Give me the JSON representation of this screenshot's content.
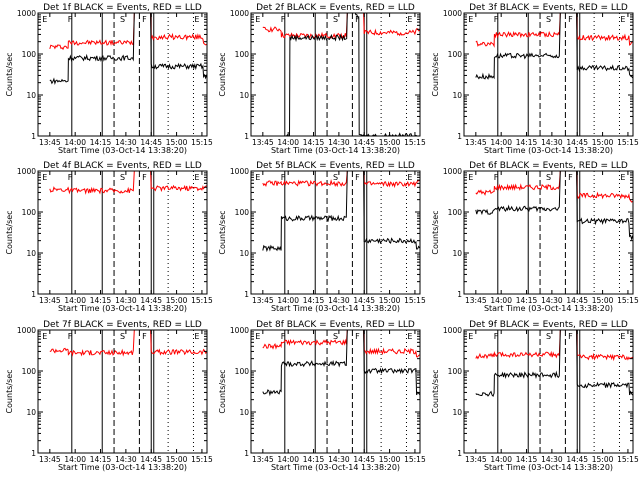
{
  "chart_data": [
    {
      "type": "line",
      "title": "Det 1f BLACK = Events, RED = LLD",
      "xlabel": "Start Time (03-Oct-14 13:38:20)",
      "ylabel": "Counts/sec",
      "x_ticks": [
        "13:45",
        "14:00",
        "14:15",
        "14:30",
        "14:45",
        "15:00",
        "15:15"
      ],
      "y_ticks": [
        "1",
        "10",
        "100",
        "1000"
      ],
      "ylim": [
        1,
        1000
      ],
      "yscale": "log",
      "markers": [
        "E",
        "F",
        "S",
        "F",
        "E"
      ],
      "series": [
        {
          "color": "#ff0000",
          "x_min": [
            7,
            18,
            57,
            67,
            98
          ],
          "values": [
            150,
            190,
            1000,
            260,
            180
          ]
        },
        {
          "color": "#000000",
          "x_min": [
            7,
            18,
            57,
            67,
            98
          ],
          "values": [
            22,
            80,
            1000,
            50,
            28
          ]
        }
      ]
    },
    {
      "type": "line",
      "title": "Det 2f BLACK = Events, RED = LLD",
      "xlabel": "Start Time (03-Oct-14 13:38:20)",
      "ylabel": "Counts/sec",
      "x_ticks": [
        "13:45",
        "14:00",
        "14:15",
        "14:30",
        "14:45",
        "15:00",
        "15:15"
      ],
      "y_ticks": [
        "1",
        "10",
        "100",
        "1000"
      ],
      "ylim": [
        1,
        1000
      ],
      "yscale": "log",
      "markers": [
        "E",
        "F",
        "S",
        "F",
        "E"
      ],
      "series": [
        {
          "color": "#ff0000",
          "x_min": [
            7,
            18,
            57,
            67,
            98
          ],
          "values": [
            400,
            280,
            1000,
            330,
            380
          ]
        },
        {
          "color": "#000000",
          "x_min": [
            21,
            23,
            57,
            62,
            64
          ],
          "values": [
            1,
            250,
            1000,
            800,
            1
          ]
        }
      ]
    },
    {
      "type": "line",
      "title": "Det 3f BLACK = Events, RED = LLD",
      "xlabel": "Start Time (03-Oct-14 13:38:20)",
      "ylabel": "Counts/sec",
      "x_ticks": [
        "13:45",
        "14:00",
        "14:15",
        "14:30",
        "14:45",
        "15:00",
        "15:15"
      ],
      "y_ticks": [
        "1",
        "10",
        "100",
        "1000"
      ],
      "ylim": [
        1,
        1000
      ],
      "yscale": "log",
      "markers": [
        "E",
        "F",
        "S",
        "F",
        "E"
      ],
      "series": [
        {
          "color": "#ff0000",
          "x_min": [
            7,
            18,
            57,
            67,
            98
          ],
          "values": [
            180,
            300,
            1000,
            250,
            190
          ]
        },
        {
          "color": "#000000",
          "x_min": [
            7,
            18,
            57,
            67,
            98
          ],
          "values": [
            28,
            90,
            1000,
            45,
            28
          ]
        }
      ]
    },
    {
      "type": "line",
      "title": "Det 4f BLACK = Events, RED = LLD",
      "xlabel": "Start Time (03-Oct-14 13:38:20)",
      "ylabel": "Counts/sec",
      "x_ticks": [
        "13:45",
        "14:00",
        "14:15",
        "14:30",
        "14:45",
        "15:00",
        "15:15"
      ],
      "y_ticks": [
        "1",
        "10",
        "100",
        "1000"
      ],
      "ylim": [
        1,
        1000
      ],
      "yscale": "log",
      "markers": [
        "E",
        "F",
        "S",
        "F",
        "E"
      ],
      "series": [
        {
          "color": "#ff0000",
          "x_min": [
            7,
            18,
            57,
            67,
            98
          ],
          "values": [
            350,
            330,
            1000,
            380,
            400
          ]
        }
      ]
    },
    {
      "type": "line",
      "title": "Det 5f BLACK = Events, RED = LLD",
      "xlabel": "Start Time (03-Oct-14 13:38:20)",
      "ylabel": "Counts/sec",
      "x_ticks": [
        "13:45",
        "14:00",
        "14:15",
        "14:30",
        "14:45",
        "15:00",
        "15:15"
      ],
      "y_ticks": [
        "1",
        "10",
        "100",
        "1000"
      ],
      "ylim": [
        1,
        1000
      ],
      "yscale": "log",
      "markers": [
        "E",
        "F",
        "S",
        "F",
        "E"
      ],
      "series": [
        {
          "color": "#ff0000",
          "x_min": [
            7,
            18,
            57,
            67,
            98
          ],
          "values": [
            500,
            500,
            1000,
            480,
            520
          ]
        },
        {
          "color": "#000000",
          "x_min": [
            7,
            18,
            57,
            67,
            98
          ],
          "values": [
            13,
            70,
            1000,
            20,
            13
          ]
        }
      ]
    },
    {
      "type": "line",
      "title": "Det 6f BLACK = Events, RED = LLD",
      "xlabel": "Start Time (03-Oct-14 13:38:20)",
      "ylabel": "Counts/sec",
      "x_ticks": [
        "13:45",
        "14:00",
        "14:15",
        "14:30",
        "14:45",
        "15:00",
        "15:15"
      ],
      "y_ticks": [
        "1",
        "10",
        "100",
        "1000"
      ],
      "ylim": [
        1,
        1000
      ],
      "yscale": "log",
      "markers": [
        "E",
        "F",
        "S",
        "F",
        "E"
      ],
      "series": [
        {
          "color": "#ff0000",
          "x_min": [
            7,
            18,
            57,
            67,
            98
          ],
          "values": [
            300,
            400,
            1000,
            250,
            200
          ]
        },
        {
          "color": "#000000",
          "x_min": [
            7,
            18,
            57,
            67,
            98
          ],
          "values": [
            100,
            120,
            1000,
            60,
            25
          ]
        }
      ]
    },
    {
      "type": "line",
      "title": "Det 7f BLACK = Events, RED = LLD",
      "xlabel": "Start Time (03-Oct-14 13:38:20)",
      "ylabel": "Counts/sec",
      "x_ticks": [
        "13:45",
        "14:00",
        "14:15",
        "14:30",
        "14:45",
        "15:00",
        "15:15"
      ],
      "y_ticks": [
        "1",
        "10",
        "100",
        "1000"
      ],
      "ylim": [
        1,
        1000
      ],
      "yscale": "log",
      "markers": [
        "E",
        "F",
        "S",
        "F",
        "E"
      ],
      "series": [
        {
          "color": "#ff0000",
          "x_min": [
            7,
            18,
            57,
            67,
            98
          ],
          "values": [
            320,
            280,
            1000,
            290,
            300
          ]
        }
      ]
    },
    {
      "type": "line",
      "title": "Det 8f BLACK = Events, RED = LLD",
      "xlabel": "Start Time (03-Oct-14 13:38:20)",
      "ylabel": "Counts/sec",
      "x_ticks": [
        "13:45",
        "14:00",
        "14:15",
        "14:30",
        "14:45",
        "15:00",
        "15:15"
      ],
      "y_ticks": [
        "1",
        "10",
        "100",
        "1000"
      ],
      "ylim": [
        1,
        1000
      ],
      "yscale": "log",
      "markers": [
        "E",
        "F",
        "S",
        "F",
        "E"
      ],
      "series": [
        {
          "color": "#ff0000",
          "x_min": [
            7,
            18,
            57,
            67,
            98
          ],
          "values": [
            400,
            500,
            1000,
            300,
            250
          ]
        },
        {
          "color": "#000000",
          "x_min": [
            7,
            18,
            57,
            67,
            98
          ],
          "values": [
            30,
            150,
            1000,
            100,
            30
          ]
        }
      ]
    },
    {
      "type": "line",
      "title": "Det 9f BLACK = Events, RED = LLD",
      "xlabel": "Start Time (03-Oct-14 13:38:20)",
      "ylabel": "Counts/sec",
      "x_ticks": [
        "13:45",
        "14:00",
        "14:15",
        "14:30",
        "14:45",
        "15:00",
        "15:15"
      ],
      "y_ticks": [
        "1",
        "10",
        "100",
        "1000"
      ],
      "ylim": [
        1,
        1000
      ],
      "yscale": "log",
      "markers": [
        "E",
        "F",
        "S",
        "F",
        "E"
      ],
      "series": [
        {
          "color": "#ff0000",
          "x_min": [
            7,
            18,
            57,
            67,
            98
          ],
          "values": [
            230,
            250,
            1000,
            220,
            210
          ]
        },
        {
          "color": "#000000",
          "x_min": [
            7,
            18,
            57,
            67,
            98
          ],
          "values": [
            28,
            80,
            1000,
            45,
            28
          ]
        }
      ]
    }
  ]
}
